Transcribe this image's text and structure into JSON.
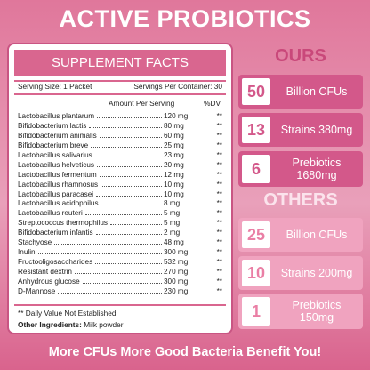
{
  "title": "ACTIVE PROBIOTICS",
  "facts": {
    "heading": "SUPPLEMENT FACTS",
    "serving_size": "Serving Size: 1 Packet",
    "servings": "Servings Per Container: 30",
    "amount_header": "Amount Per Serving",
    "dv_header": "%DV",
    "rows": [
      [
        "Lactobacillus plantarum",
        "120 mg",
        "**"
      ],
      [
        "Bifidobacterium lactis",
        "80 mg",
        "**"
      ],
      [
        "Bifidobacterium animalis",
        "60 mg",
        "**"
      ],
      [
        "Bifidobacterium breve",
        "25 mg",
        "**"
      ],
      [
        "Lactobacillus salivarius",
        "23 mg",
        "**"
      ],
      [
        "Lactobacillus helveticus",
        "20 mg",
        "**"
      ],
      [
        "Lactobacillus fermentum",
        "12 mg",
        "**"
      ],
      [
        "Lactobacillus rhamnosus",
        "10 mg",
        "**"
      ],
      [
        "Lactobacillus paracasei",
        "10 mg",
        "**"
      ],
      [
        "Lactobacillus acidophilus",
        "8 mg",
        "**"
      ],
      [
        "Lactobacillus reuteri",
        "5 mg",
        "**"
      ],
      [
        "Streptococcus thermophilus",
        "5 mg",
        "**"
      ],
      [
        "Bifidobacterium infantis",
        "2 mg",
        "**"
      ],
      [
        "Stachyose",
        "48 mg",
        "**"
      ],
      [
        "Inulin",
        "300 mg",
        "**"
      ],
      [
        "Fructooligosaccharides",
        "532 mg",
        "**"
      ],
      [
        "Resistant dextrin",
        "270 mg",
        "**"
      ],
      [
        "Anhydrous glucose",
        "300 mg",
        "**"
      ],
      [
        "D-Mannose",
        "230 mg",
        "**"
      ]
    ],
    "footnote": "** Daily Value Not Established",
    "other_label": "Other Ingredients:",
    "other_value": "Milk powder"
  },
  "ours": {
    "heading": "OURS",
    "items": [
      {
        "number": "50",
        "lines": [
          "Billion CFUs"
        ]
      },
      {
        "number": "13",
        "lines": [
          "Strains 380mg"
        ]
      },
      {
        "number": "6",
        "lines": [
          "Prebiotics",
          "1680mg"
        ]
      }
    ]
  },
  "others": {
    "heading": "OTHERS",
    "items": [
      {
        "number": "25",
        "lines": [
          "Billion CFUs"
        ]
      },
      {
        "number": "10",
        "lines": [
          "Strains 200mg"
        ]
      },
      {
        "number": "1",
        "lines": [
          "Prebiotics",
          "150mg"
        ]
      }
    ]
  },
  "footer": "More CFUs More Good Bacteria Benefit You!"
}
